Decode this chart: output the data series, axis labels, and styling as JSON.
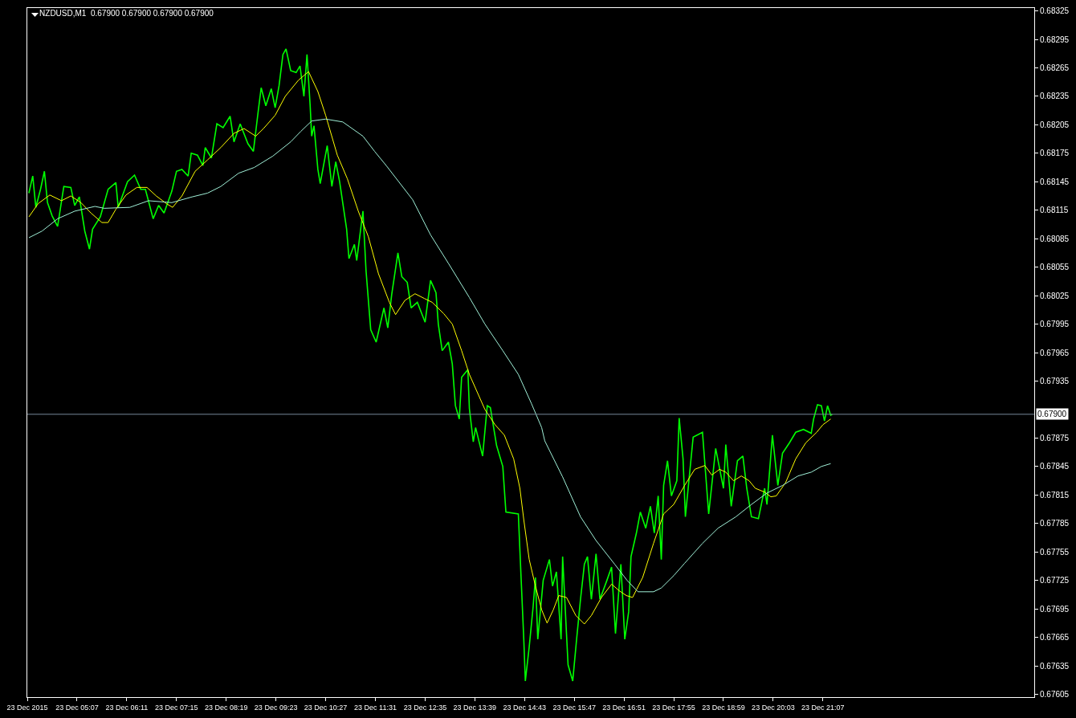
{
  "chart_data": {
    "type": "line",
    "title": "NZDUSD,M1  0.67900 0.67900 0.67900 0.67900",
    "xlim": [
      "2015-12-23T04:03",
      "2015-12-24T01:39"
    ],
    "xticks": [
      {
        "value": "2015-12-23T04:03",
        "label": "23 Dec 2015"
      },
      {
        "value": "2015-12-23T05:07",
        "label": "23 Dec 05:07"
      },
      {
        "value": "2015-12-23T06:11",
        "label": "23 Dec 06:11"
      },
      {
        "value": "2015-12-23T07:15",
        "label": "23 Dec 07:15"
      },
      {
        "value": "2015-12-23T08:19",
        "label": "23 Dec 08:19"
      },
      {
        "value": "2015-12-23T09:23",
        "label": "23 Dec 09:23"
      },
      {
        "value": "2015-12-23T10:27",
        "label": "23 Dec 10:27"
      },
      {
        "value": "2015-12-23T11:31",
        "label": "23 Dec 11:31"
      },
      {
        "value": "2015-12-23T12:35",
        "label": "23 Dec 12:35"
      },
      {
        "value": "2015-12-23T13:39",
        "label": "23 Dec 13:39"
      },
      {
        "value": "2015-12-23T14:43",
        "label": "23 Dec 14:43"
      },
      {
        "value": "2015-12-23T15:47",
        "label": "23 Dec 15:47"
      },
      {
        "value": "2015-12-23T16:51",
        "label": "23 Dec 16:51"
      },
      {
        "value": "2015-12-23T17:55",
        "label": "23 Dec 17:55"
      },
      {
        "value": "2015-12-23T18:59",
        "label": "23 Dec 18:59"
      },
      {
        "value": "2015-12-23T20:03",
        "label": "23 Dec 20:03"
      },
      {
        "value": "2015-12-23T21:07",
        "label": "23 Dec 21:07"
      }
    ],
    "ylim": [
      0.67602,
      0.68328
    ],
    "yticks": [
      0.68325,
      0.68295,
      0.68265,
      0.68235,
      0.68205,
      0.68175,
      0.68145,
      0.68115,
      0.68085,
      0.68055,
      0.68025,
      0.67995,
      0.67965,
      0.67935,
      0.67875,
      0.67845,
      0.67815,
      0.67785,
      0.67755,
      0.67725,
      0.67695,
      0.67665,
      0.67635,
      0.67605
    ],
    "ref_lines": [
      {
        "axis": "y",
        "value": 0.679,
        "label": "0.67900",
        "color": "#778899"
      }
    ],
    "series": [
      {
        "color": "#00ff00",
        "x": [
          "2015-12-23T04:05",
          "2015-12-23T04:10",
          "2015-12-23T04:14",
          "2015-12-23T04:20",
          "2015-12-23T04:25",
          "2015-12-23T04:29",
          "2015-12-23T04:35",
          "2015-12-23T04:42",
          "2015-12-23T04:50",
          "2015-12-23T04:59",
          "2015-12-23T05:04",
          "2015-12-23T05:10",
          "2015-12-23T05:17",
          "2015-12-23T05:23",
          "2015-12-23T05:27",
          "2015-12-23T05:37",
          "2015-12-23T05:47",
          "2015-12-23T05:57",
          "2015-12-23T06:00",
          "2015-12-23T06:12",
          "2015-12-23T06:21",
          "2015-12-23T06:29",
          "2015-12-23T06:35",
          "2015-12-23T06:45",
          "2015-12-23T06:52",
          "2015-12-23T06:59",
          "2015-12-23T07:09",
          "2015-12-23T07:15",
          "2015-12-23T07:22",
          "2015-12-23T07:30",
          "2015-12-23T07:34",
          "2015-12-23T07:42",
          "2015-12-23T07:49",
          "2015-12-23T07:52",
          "2015-12-23T08:00",
          "2015-12-23T08:07",
          "2015-12-23T08:15",
          "2015-12-23T08:24",
          "2015-12-23T08:29",
          "2015-12-23T08:37",
          "2015-12-23T08:47",
          "2015-12-23T08:54",
          "2015-12-23T09:00",
          "2015-12-23T09:04",
          "2015-12-23T09:10",
          "2015-12-23T09:17",
          "2015-12-23T09:22",
          "2015-12-23T09:27",
          "2015-12-23T09:32",
          "2015-12-23T09:36",
          "2015-12-23T09:42",
          "2015-12-23T09:49",
          "2015-12-23T09:54",
          "2015-12-23T09:59",
          "2015-12-23T10:03",
          "2015-12-23T10:07",
          "2015-12-23T10:09",
          "2015-12-23T10:12",
          "2015-12-23T10:17",
          "2015-12-23T10:20",
          "2015-12-23T10:29",
          "2015-12-23T10:35",
          "2015-12-23T10:40",
          "2015-12-23T10:45",
          "2015-12-23T10:54",
          "2015-12-23T10:57",
          "2015-12-23T11:04",
          "2015-12-23T11:07",
          "2015-12-23T11:15",
          "2015-12-23T11:19",
          "2015-12-23T11:25",
          "2015-12-23T11:32",
          "2015-12-23T11:42",
          "2015-12-23T11:47",
          "2015-12-23T11:52",
          "2015-12-23T12:00",
          "2015-12-23T12:05",
          "2015-12-23T12:12",
          "2015-12-23T12:17",
          "2015-12-23T12:25",
          "2015-12-23T12:35",
          "2015-12-23T12:42",
          "2015-12-23T12:49",
          "2015-12-23T12:52",
          "2015-12-23T12:57",
          "2015-12-23T13:05",
          "2015-12-23T13:10",
          "2015-12-23T13:14",
          "2015-12-23T13:19",
          "2015-12-23T13:22",
          "2015-12-23T13:30",
          "2015-12-23T13:32",
          "2015-12-23T13:37",
          "2015-12-23T13:40",
          "2015-12-23T13:49",
          "2015-12-23T13:55",
          "2015-12-23T13:59",
          "2015-12-23T14:07",
          "2015-12-23T14:15",
          "2015-12-23T14:19",
          "2015-12-23T14:35",
          "2015-12-23T14:39",
          "2015-12-23T14:42",
          "2015-12-23T14:44",
          "2015-12-23T14:49",
          "2015-12-23T14:54",
          "2015-12-23T14:57",
          "2015-12-23T15:00",
          "2015-12-23T15:07",
          "2015-12-23T15:15",
          "2015-12-23T15:19",
          "2015-12-23T15:24",
          "2015-12-23T15:30",
          "2015-12-23T15:32",
          "2015-12-23T15:39",
          "2015-12-23T15:45",
          "2015-12-23T15:50",
          "2015-12-23T15:55",
          "2015-12-23T16:00",
          "2015-12-23T16:04",
          "2015-12-23T16:09",
          "2015-12-23T16:15",
          "2015-12-23T16:20",
          "2015-12-23T16:29",
          "2015-12-23T16:35",
          "2015-12-23T16:40",
          "2015-12-23T16:47",
          "2015-12-23T16:52",
          "2015-12-23T16:57",
          "2015-12-23T17:00",
          "2015-12-23T17:07",
          "2015-12-23T17:12",
          "2015-12-23T17:19",
          "2015-12-23T17:25",
          "2015-12-23T17:30",
          "2015-12-23T17:35",
          "2015-12-23T17:39",
          "2015-12-23T17:42",
          "2015-12-23T17:47",
          "2015-12-23T17:52",
          "2015-12-23T17:59",
          "2015-12-23T18:02",
          "2015-12-23T18:07",
          "2015-12-23T18:10",
          "2015-12-23T18:20",
          "2015-12-23T18:32",
          "2015-12-23T18:40",
          "2015-12-23T18:49",
          "2015-12-23T18:59",
          "2015-12-23T19:02",
          "2015-12-23T19:09",
          "2015-12-23T19:17",
          "2015-12-23T19:24",
          "2015-12-23T19:29",
          "2015-12-23T19:35",
          "2015-12-23T19:44",
          "2015-12-23T19:52",
          "2015-12-23T19:55",
          "2015-12-23T20:02",
          "2015-12-23T20:09",
          "2015-12-23T20:15",
          "2015-12-23T20:24",
          "2015-12-23T20:32",
          "2015-12-23T20:42",
          "2015-12-23T20:52",
          "2015-12-23T20:55",
          "2015-12-23T21:00",
          "2015-12-23T21:05",
          "2015-12-23T21:09",
          "2015-12-23T21:13",
          "2015-12-23T21:17",
          "2015-12-23T21:19"
        ],
        "values": [
          0.68133,
          0.68151,
          0.68118,
          0.68137,
          0.68156,
          0.68123,
          0.68109,
          0.68098,
          0.6814,
          0.68139,
          0.6812,
          0.68129,
          0.68093,
          0.68074,
          0.68095,
          0.68108,
          0.68137,
          0.68144,
          0.68118,
          0.68145,
          0.68152,
          0.68137,
          0.68137,
          0.68106,
          0.6812,
          0.68112,
          0.68135,
          0.68156,
          0.68158,
          0.68151,
          0.68175,
          0.68173,
          0.68162,
          0.68181,
          0.6817,
          0.68206,
          0.68202,
          0.68214,
          0.68187,
          0.68206,
          0.68185,
          0.68177,
          0.68218,
          0.68244,
          0.68225,
          0.68243,
          0.68223,
          0.68246,
          0.68279,
          0.68285,
          0.68262,
          0.6826,
          0.68267,
          0.68235,
          0.68279,
          0.68226,
          0.68193,
          0.68204,
          0.68158,
          0.68143,
          0.68183,
          0.6814,
          0.68166,
          0.68145,
          0.68095,
          0.68064,
          0.68079,
          0.68062,
          0.68114,
          0.68051,
          0.67989,
          0.67976,
          0.68012,
          0.67991,
          0.68026,
          0.6807,
          0.68045,
          0.68039,
          0.68012,
          0.68018,
          0.67997,
          0.68041,
          0.68028,
          0.67995,
          0.67967,
          0.67976,
          0.67953,
          0.67909,
          0.67895,
          0.67939,
          0.67947,
          0.67906,
          0.67871,
          0.67886,
          0.67856,
          0.67909,
          0.67907,
          0.67867,
          0.67845,
          0.67797,
          0.67795,
          0.67719,
          0.67663,
          0.67619,
          0.67655,
          0.67697,
          0.67728,
          0.67663,
          0.67725,
          0.67747,
          0.67719,
          0.67734,
          0.67663,
          0.6775,
          0.67636,
          0.67619,
          0.67663,
          0.67705,
          0.67742,
          0.6775,
          0.67705,
          0.67753,
          0.67705,
          0.67725,
          0.67739,
          0.67669,
          0.67742,
          0.67663,
          0.67692,
          0.6775,
          0.67775,
          0.67797,
          0.6778,
          0.67803,
          0.67775,
          0.67814,
          0.67747,
          0.67825,
          0.67851,
          0.67814,
          0.6783,
          0.67896,
          0.67853,
          0.67792,
          0.67876,
          0.67881,
          0.67795,
          0.67864,
          0.67822,
          0.67868,
          0.67803,
          0.67851,
          0.67856,
          0.67822,
          0.67792,
          0.6779,
          0.67822,
          0.67805,
          0.67878,
          0.67825,
          0.67859,
          0.6787,
          0.67881,
          0.67884,
          0.6788,
          0.67895,
          0.6791,
          0.67909,
          0.67893,
          0.67909,
          0.67899,
          0.679
        ]
      },
      {
        "color": "#ffff00",
        "x": [
          "2015-12-23T04:05",
          "2015-12-23T04:17",
          "2015-12-23T04:32",
          "2015-12-23T04:47",
          "2015-12-23T04:59",
          "2015-12-23T05:12",
          "2015-12-23T05:25",
          "2015-12-23T05:39",
          "2015-12-23T05:47",
          "2015-12-23T05:57",
          "2015-12-23T06:10",
          "2015-12-23T06:24",
          "2015-12-23T06:37",
          "2015-12-23T06:49",
          "2015-12-23T07:02",
          "2015-12-23T07:10",
          "2015-12-23T07:22",
          "2015-12-23T07:39",
          "2015-12-23T07:55",
          "2015-12-23T08:12",
          "2015-12-23T08:29",
          "2015-12-23T08:42",
          "2015-12-23T08:57",
          "2015-12-23T09:07",
          "2015-12-23T09:22",
          "2015-12-23T09:35",
          "2015-12-23T09:52",
          "2015-12-23T10:05",
          "2015-12-23T10:17",
          "2015-12-23T10:27",
          "2015-12-23T10:42",
          "2015-12-23T10:55",
          "2015-12-23T11:09",
          "2015-12-23T11:22",
          "2015-12-23T11:35",
          "2015-12-23T11:49",
          "2015-12-23T11:57",
          "2015-12-23T12:09",
          "2015-12-23T12:22",
          "2015-12-23T12:34",
          "2015-12-23T12:44",
          "2015-12-23T12:59",
          "2015-12-23T13:10",
          "2015-12-23T13:22",
          "2015-12-23T13:32",
          "2015-12-23T13:52",
          "2015-12-23T14:05",
          "2015-12-23T14:17",
          "2015-12-23T14:29",
          "2015-12-23T14:37",
          "2015-12-23T14:42",
          "2015-12-23T14:49",
          "2015-12-23T14:57",
          "2015-12-23T15:05",
          "2015-12-23T15:12",
          "2015-12-23T15:20",
          "2015-12-23T15:27",
          "2015-12-23T15:37",
          "2015-12-23T15:49",
          "2015-12-23T16:00",
          "2015-12-23T16:09",
          "2015-12-23T16:22",
          "2015-12-23T16:35",
          "2015-12-23T16:45",
          "2015-12-23T16:54",
          "2015-12-23T17:02",
          "2015-12-23T17:15",
          "2015-12-23T17:29",
          "2015-12-23T17:42",
          "2015-12-23T17:55",
          "2015-12-23T18:09",
          "2015-12-23T18:22",
          "2015-12-23T18:35",
          "2015-12-23T18:44",
          "2015-12-23T18:54",
          "2015-12-23T19:02",
          "2015-12-23T19:12",
          "2015-12-23T19:22",
          "2015-12-23T19:32",
          "2015-12-23T19:40",
          "2015-12-23T19:52",
          "2015-12-23T20:00",
          "2015-12-23T20:07",
          "2015-12-23T20:19",
          "2015-12-23T20:32",
          "2015-12-23T20:45",
          "2015-12-23T20:59",
          "2015-12-23T21:07",
          "2015-12-23T21:17"
        ],
        "values": [
          0.68108,
          0.68122,
          0.68131,
          0.68125,
          0.6813,
          0.68123,
          0.68112,
          0.68102,
          0.68102,
          0.68116,
          0.68131,
          0.68139,
          0.68139,
          0.6813,
          0.68122,
          0.68118,
          0.6813,
          0.68156,
          0.68168,
          0.68181,
          0.68196,
          0.68201,
          0.68193,
          0.68201,
          0.68215,
          0.68235,
          0.68252,
          0.68261,
          0.6824,
          0.68215,
          0.68173,
          0.68148,
          0.68114,
          0.68087,
          0.68048,
          0.68018,
          0.68005,
          0.6802,
          0.68027,
          0.68022,
          0.68018,
          0.68006,
          0.67995,
          0.67967,
          0.67942,
          0.67905,
          0.67889,
          0.67878,
          0.67853,
          0.67822,
          0.67789,
          0.67747,
          0.67719,
          0.67694,
          0.6768,
          0.67694,
          0.67709,
          0.67707,
          0.67688,
          0.67679,
          0.67688,
          0.67707,
          0.67721,
          0.67714,
          0.67709,
          0.67707,
          0.67728,
          0.67764,
          0.67795,
          0.67805,
          0.67825,
          0.67842,
          0.67846,
          0.67836,
          0.67842,
          0.67839,
          0.6783,
          0.67835,
          0.6783,
          0.67822,
          0.67818,
          0.67813,
          0.67814,
          0.67828,
          0.67853,
          0.6787,
          0.67881,
          0.67889,
          0.67895
        ]
      },
      {
        "color": "#a0f0d8",
        "x": [
          "2015-12-23T04:05",
          "2015-12-23T04:22",
          "2015-12-23T04:42",
          "2015-12-23T05:04",
          "2015-12-23T05:30",
          "2015-12-23T05:42",
          "2015-12-23T06:15",
          "2015-12-23T06:39",
          "2015-12-23T07:09",
          "2015-12-23T07:35",
          "2015-12-23T07:55",
          "2015-12-23T08:12",
          "2015-12-23T08:35",
          "2015-12-23T08:55",
          "2015-12-23T09:19",
          "2015-12-23T09:42",
          "2015-12-23T09:55",
          "2015-12-23T10:09",
          "2015-12-23T10:27",
          "2015-12-23T10:49",
          "2015-12-23T11:15",
          "2015-12-23T11:30",
          "2015-12-23T11:45",
          "2015-12-23T12:19",
          "2015-12-23T12:42",
          "2015-12-23T13:05",
          "2015-12-23T13:32",
          "2015-12-23T13:52",
          "2015-12-23T14:15",
          "2015-12-23T14:35",
          "2015-12-23T14:52",
          "2015-12-23T15:05",
          "2015-12-23T15:09",
          "2015-12-23T15:32",
          "2015-12-23T15:55",
          "2015-12-23T16:15",
          "2015-12-23T16:39",
          "2015-12-23T16:55",
          "2015-12-23T17:09",
          "2015-12-23T17:29",
          "2015-12-23T17:39",
          "2015-12-23T17:55",
          "2015-12-23T18:09",
          "2015-12-23T18:32",
          "2015-12-23T18:52",
          "2015-12-23T19:15",
          "2015-12-23T19:35",
          "2015-12-23T19:55",
          "2015-12-23T20:15",
          "2015-12-23T20:35",
          "2015-12-23T20:52",
          "2015-12-23T21:05",
          "2015-12-23T21:17"
        ],
        "values": [
          0.68086,
          0.68093,
          0.68106,
          0.68114,
          0.68119,
          0.68117,
          0.68118,
          0.68125,
          0.68123,
          0.68129,
          0.68133,
          0.6814,
          0.68154,
          0.6816,
          0.68172,
          0.68187,
          0.68198,
          0.68209,
          0.68211,
          0.68208,
          0.68193,
          0.68177,
          0.68162,
          0.68126,
          0.68089,
          0.68059,
          0.68023,
          0.67995,
          0.67967,
          0.67942,
          0.67911,
          0.67886,
          0.67872,
          0.67834,
          0.67792,
          0.67767,
          0.67742,
          0.67725,
          0.67713,
          0.67713,
          0.67717,
          0.6773,
          0.67743,
          0.67764,
          0.6778,
          0.67792,
          0.67805,
          0.67817,
          0.67825,
          0.67835,
          0.67839,
          0.67845,
          0.67848
        ]
      }
    ]
  }
}
